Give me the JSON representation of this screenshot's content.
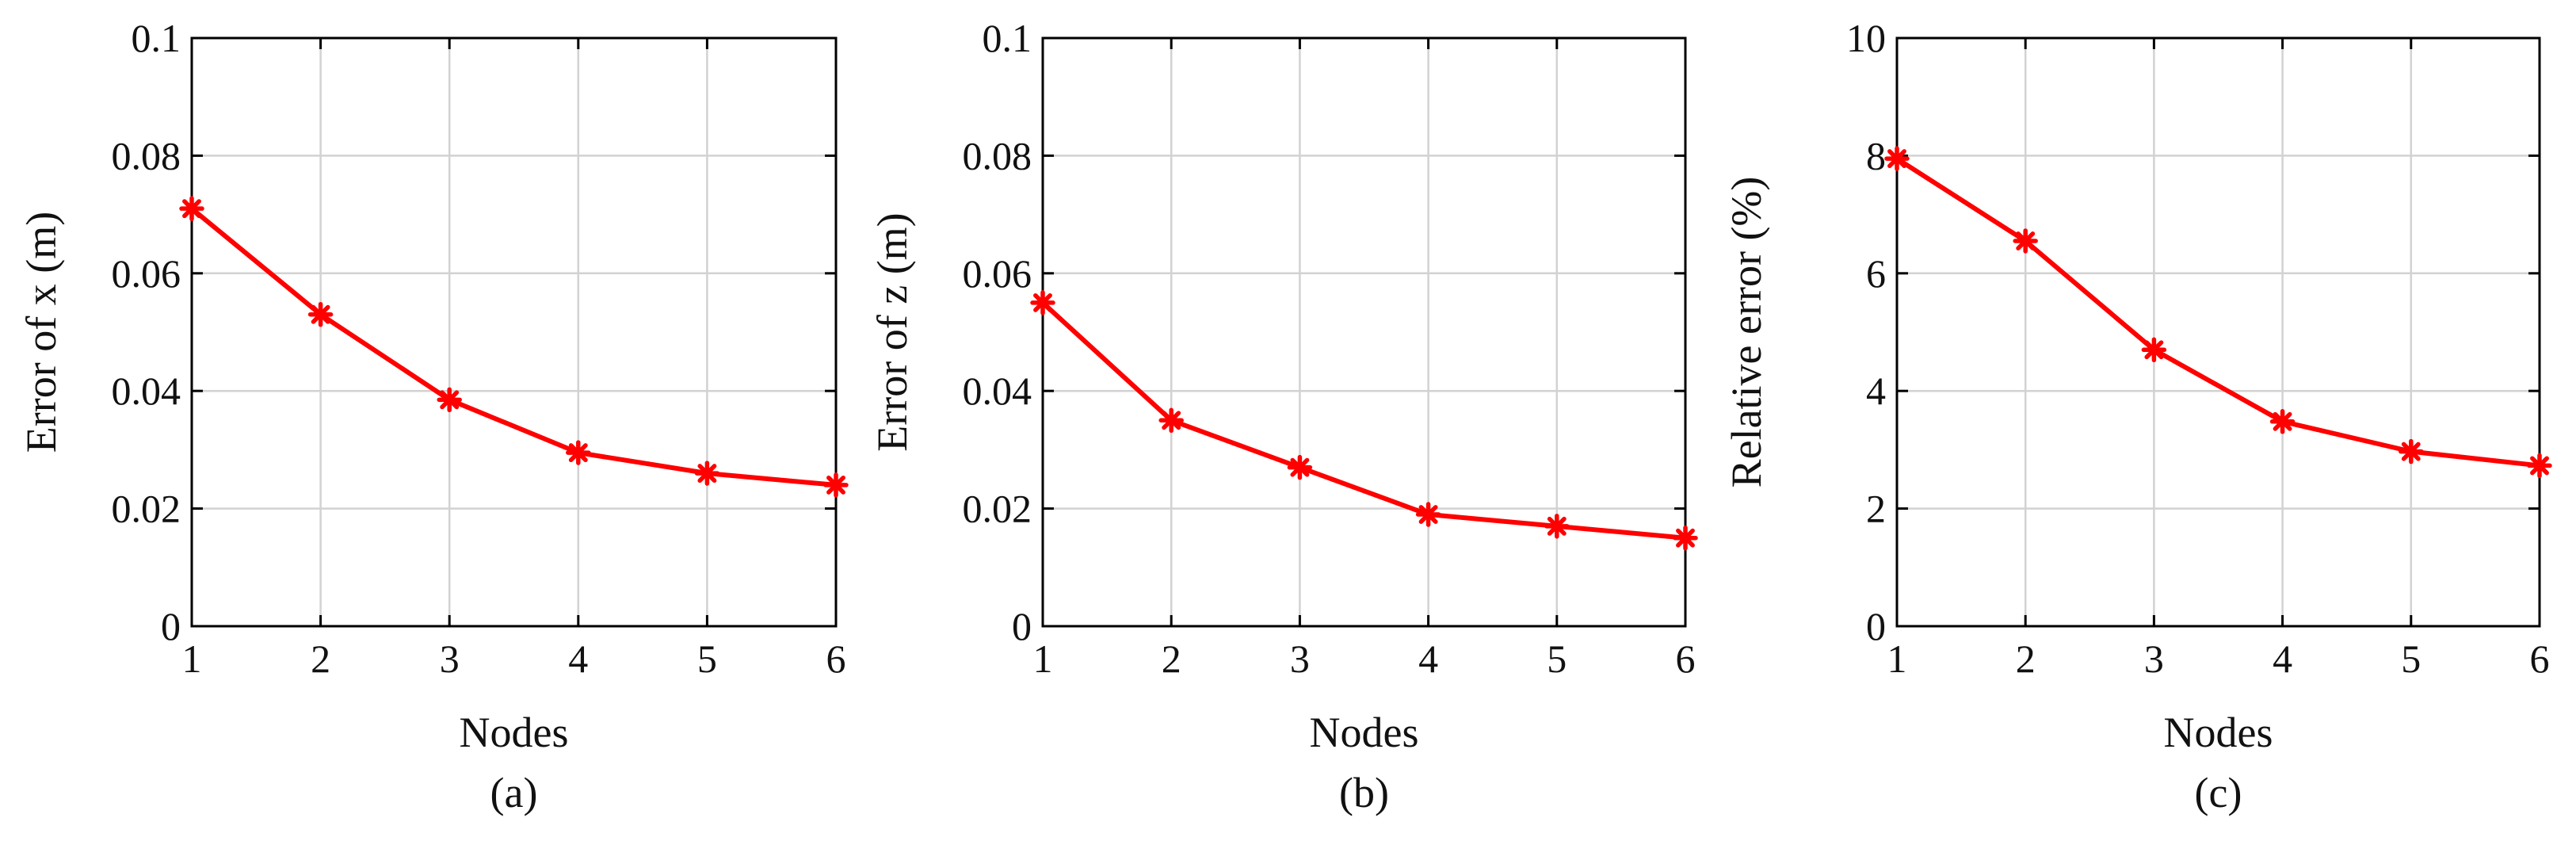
{
  "colors": {
    "series": "#ff0000",
    "axes": "#000000",
    "grid": "#d2d2d2"
  },
  "chart_data": [
    {
      "type": "line",
      "caption": "(a)",
      "xlabel": "Nodes",
      "ylabel": "Error of x (m)",
      "x": [
        1,
        2,
        3,
        4,
        5,
        6
      ],
      "xlim": [
        1,
        6
      ],
      "ylim": [
        0,
        0.1
      ],
      "xticks": [
        "1",
        "2",
        "3",
        "4",
        "5",
        "6"
      ],
      "yticks": [
        "0",
        "0.02",
        "0.04",
        "0.06",
        "0.08",
        "0.1"
      ],
      "grid": true,
      "marker": "asterisk",
      "series": [
        {
          "values": [
            0.071,
            0.053,
            0.0385,
            0.0295,
            0.026,
            0.024
          ]
        }
      ]
    },
    {
      "type": "line",
      "caption": "(b)",
      "xlabel": "Nodes",
      "ylabel": "Error of z (m)",
      "x": [
        1,
        2,
        3,
        4,
        5,
        6
      ],
      "xlim": [
        1,
        6
      ],
      "ylim": [
        0,
        0.1
      ],
      "xticks": [
        "1",
        "2",
        "3",
        "4",
        "5",
        "6"
      ],
      "yticks": [
        "0",
        "0.02",
        "0.04",
        "0.06",
        "0.08",
        "0.1"
      ],
      "grid": true,
      "marker": "asterisk",
      "series": [
        {
          "values": [
            0.055,
            0.035,
            0.027,
            0.019,
            0.017,
            0.015
          ]
        }
      ]
    },
    {
      "type": "line",
      "caption": "(c)",
      "xlabel": "Nodes",
      "ylabel": "Relative error (%)",
      "x": [
        1,
        2,
        3,
        4,
        5,
        6
      ],
      "xlim": [
        1,
        6
      ],
      "ylim": [
        0,
        10
      ],
      "xticks": [
        "1",
        "2",
        "3",
        "4",
        "5",
        "6"
      ],
      "yticks": [
        "0",
        "2",
        "4",
        "6",
        "8",
        "10"
      ],
      "grid": true,
      "marker": "asterisk",
      "series": [
        {
          "values": [
            7.95,
            6.55,
            4.7,
            3.48,
            2.97,
            2.73
          ]
        }
      ]
    }
  ]
}
